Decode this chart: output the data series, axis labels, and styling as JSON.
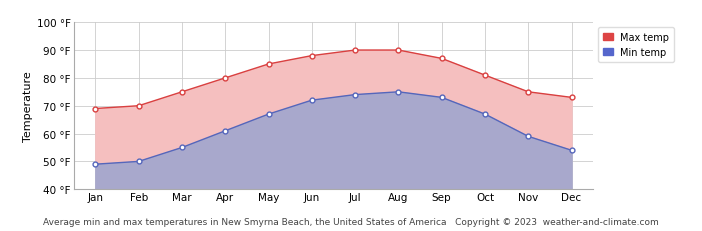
{
  "months": [
    "Jan",
    "Feb",
    "Mar",
    "Apr",
    "May",
    "Jun",
    "Jul",
    "Aug",
    "Sep",
    "Oct",
    "Nov",
    "Dec"
  ],
  "max_temp": [
    69,
    70,
    75,
    80,
    85,
    88,
    90,
    90,
    87,
    81,
    75,
    73
  ],
  "min_temp": [
    49,
    50,
    55,
    61,
    67,
    72,
    74,
    75,
    73,
    67,
    59,
    54
  ],
  "ylim": [
    40,
    100
  ],
  "yticks": [
    40,
    50,
    60,
    70,
    80,
    90,
    100
  ],
  "ytick_labels": [
    "40 °F",
    "50 °F",
    "60 °F",
    "70 °F",
    "80 °F",
    "90 °F",
    "100 °F"
  ],
  "max_fill_color": "#f5bfbf",
  "min_fill_color": "#a8a8cc",
  "max_line_color": "#d94040",
  "min_line_color": "#5566bb",
  "background_color": "#ffffff",
  "grid_color": "#cccccc",
  "tick_fontsize": 7.5,
  "ylabel": "Temperature",
  "ylabel_fontsize": 8,
  "caption": "Average min and max temperatures in New Smyrna Beach, the United States of America   Copyright © 2023  weather-and-climate.com",
  "caption_fontsize": 6.5,
  "legend_max_label": "Max temp",
  "legend_min_label": "Min temp",
  "legend_max_color": "#dd4444",
  "legend_min_color": "#5566cc"
}
